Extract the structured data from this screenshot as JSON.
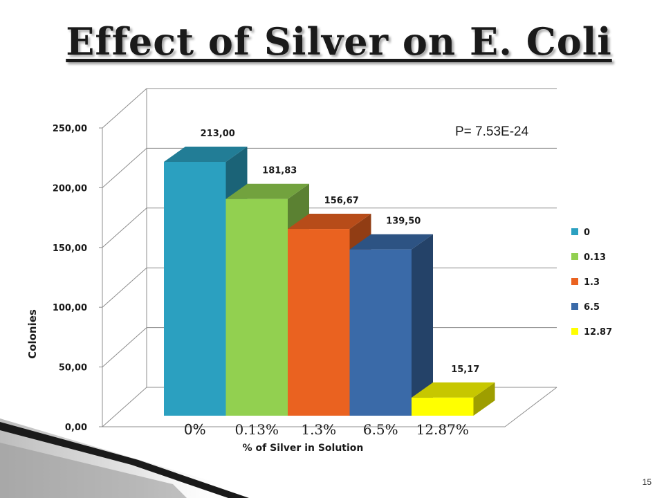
{
  "slide": {
    "title": "Effect of Silver on E. Coli",
    "number": "15"
  },
  "chart_data": {
    "type": "bar",
    "categories": [
      "0%",
      "0.13%",
      "1.3%",
      "6.5%",
      "12.87%"
    ],
    "values": [
      213.0,
      181.83,
      156.67,
      139.5,
      15.17
    ],
    "data_labels": [
      "213,00",
      "181,83",
      "156,67",
      "139,50",
      "15,17"
    ],
    "colors": [
      "#2ba0c0",
      "#92d050",
      "#ea6220",
      "#3a6aa8",
      "#ffff00"
    ],
    "xlabel": "% of Silver in Solution",
    "ylabel": "Colonies",
    "ylim": [
      0,
      250
    ],
    "y_ticks": [
      "0,00",
      "50,00",
      "100,00",
      "150,00",
      "200,00",
      "250,00"
    ],
    "annotation": "P= 7.53E-24",
    "legend": {
      "position": "right",
      "entries": [
        "0",
        "0.13",
        "1.3",
        "6.5",
        "12.87"
      ]
    },
    "grid": true,
    "three_d": true
  }
}
